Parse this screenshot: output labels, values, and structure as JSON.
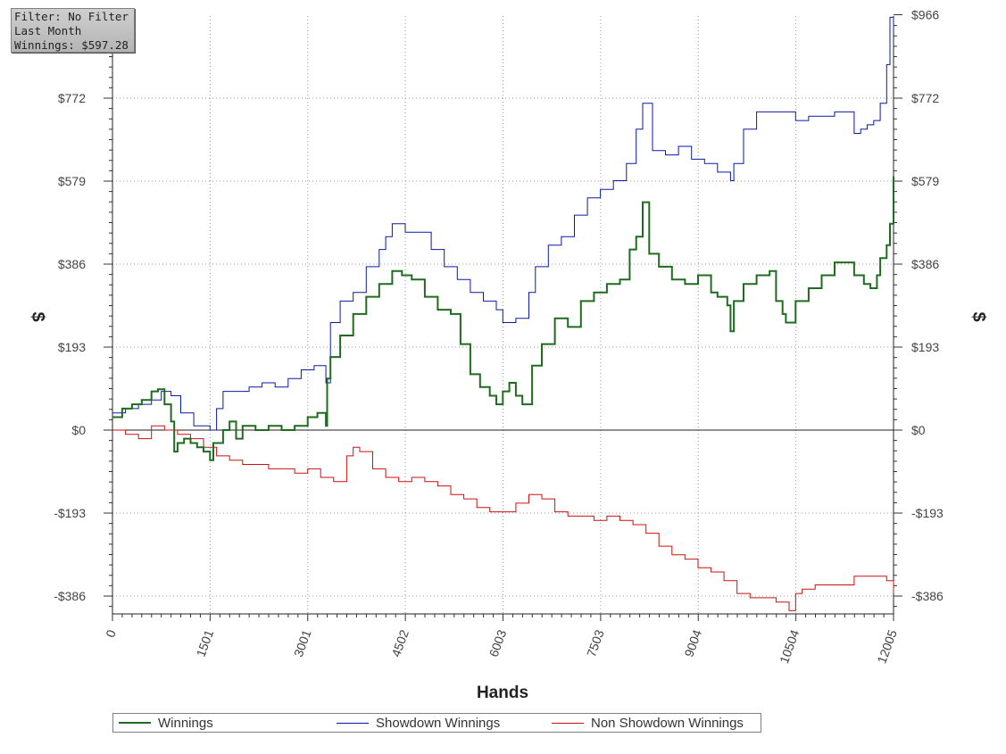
{
  "filter_box": {
    "filter_text": "Filter: No Filter",
    "period_text": "Last Month",
    "winnings_text": "Winnings: $597.28"
  },
  "chart_data": {
    "type": "line",
    "xlabel": "Hands",
    "ylabel": "$",
    "xlim": [
      0,
      12005
    ],
    "ylim": [
      -430,
      966
    ],
    "x_ticks": [
      "0",
      "1501",
      "3001",
      "4502",
      "6003",
      "7503",
      "9004",
      "10504",
      "12005"
    ],
    "y_ticks": [
      {
        "value": 966,
        "label": "$966",
        "show_left": false
      },
      {
        "value": 772,
        "label": "$772",
        "show_left": true
      },
      {
        "value": 579,
        "label": "$579",
        "show_left": true
      },
      {
        "value": 386,
        "label": "$386",
        "show_left": true
      },
      {
        "value": 193,
        "label": "$193",
        "show_left": true
      },
      {
        "value": 0,
        "label": "$0",
        "show_left": true
      },
      {
        "value": -193,
        "label": "-$193",
        "show_left": true
      },
      {
        "value": -386,
        "label": "-$386",
        "show_left": true
      }
    ],
    "grid": true,
    "legend_position": "bottom",
    "series": [
      {
        "name": "Winnings",
        "color": "#1f6b1f",
        "x": [
          0,
          150,
          300,
          450,
          600,
          700,
          800,
          900,
          950,
          1000,
          1100,
          1200,
          1300,
          1400,
          1500,
          1550,
          1700,
          1800,
          1900,
          2000,
          2200,
          2400,
          2600,
          2800,
          3000,
          3150,
          3280,
          3300,
          3350,
          3500,
          3700,
          3900,
          4100,
          4300,
          4450,
          4600,
          4800,
          5000,
          5200,
          5350,
          5500,
          5650,
          5800,
          5900,
          6000,
          6100,
          6200,
          6300,
          6450,
          6600,
          6800,
          7000,
          7200,
          7400,
          7600,
          7800,
          7950,
          8050,
          8150,
          8250,
          8400,
          8600,
          8800,
          9000,
          9200,
          9300,
          9450,
          9500,
          9550,
          9700,
          9900,
          10100,
          10200,
          10300,
          10350,
          10500,
          10700,
          10900,
          11100,
          11300,
          11400,
          11550,
          11650,
          11750,
          11800,
          11900,
          11950,
          12005
        ],
        "y": [
          30,
          50,
          60,
          70,
          90,
          95,
          60,
          20,
          -50,
          -30,
          -20,
          -30,
          -40,
          -50,
          -70,
          -30,
          0,
          20,
          -20,
          10,
          0,
          10,
          0,
          10,
          30,
          40,
          10,
          120,
          170,
          220,
          270,
          310,
          340,
          370,
          360,
          350,
          310,
          280,
          270,
          200,
          130,
          100,
          80,
          60,
          90,
          110,
          80,
          60,
          150,
          200,
          260,
          240,
          300,
          320,
          340,
          350,
          420,
          450,
          530,
          410,
          380,
          350,
          340,
          360,
          320,
          310,
          290,
          230,
          300,
          340,
          360,
          370,
          300,
          270,
          250,
          300,
          330,
          360,
          390,
          390,
          360,
          340,
          330,
          360,
          400,
          430,
          480,
          590
        ]
      },
      {
        "name": "Showdown Winnings",
        "color": "#0a1aa0",
        "x": [
          0,
          200,
          400,
          600,
          750,
          900,
          1050,
          1250,
          1500,
          1600,
          1700,
          1900,
          2100,
          2300,
          2500,
          2700,
          2900,
          3100,
          3280,
          3350,
          3500,
          3700,
          3900,
          4100,
          4200,
          4300,
          4500,
          4700,
          4900,
          5100,
          5300,
          5500,
          5700,
          5900,
          6000,
          6200,
          6400,
          6500,
          6700,
          6900,
          7100,
          7300,
          7500,
          7700,
          7900,
          8050,
          8150,
          8300,
          8500,
          8700,
          8900,
          9100,
          9300,
          9500,
          9550,
          9700,
          9900,
          10100,
          10300,
          10500,
          10700,
          10900,
          11100,
          11300,
          11400,
          11500,
          11600,
          11700,
          11800,
          11900,
          11950,
          12005
        ],
        "y": [
          40,
          50,
          60,
          70,
          90,
          80,
          40,
          10,
          0,
          50,
          90,
          90,
          100,
          110,
          100,
          120,
          140,
          150,
          110,
          250,
          300,
          320,
          380,
          420,
          450,
          480,
          460,
          460,
          420,
          380,
          350,
          320,
          300,
          280,
          250,
          260,
          320,
          380,
          430,
          450,
          500,
          540,
          560,
          580,
          620,
          700,
          760,
          650,
          640,
          660,
          630,
          620,
          600,
          580,
          620,
          700,
          740,
          740,
          740,
          720,
          730,
          730,
          740,
          740,
          690,
          700,
          710,
          720,
          760,
          850,
          960,
          920
        ]
      },
      {
        "name": "Non Showdown Winnings",
        "color": "#cc1010",
        "x": [
          0,
          200,
          400,
          600,
          800,
          1000,
          1200,
          1400,
          1600,
          1800,
          2000,
          2200,
          2400,
          2600,
          2800,
          3000,
          3200,
          3400,
          3600,
          3700,
          3800,
          4000,
          4200,
          4400,
          4600,
          4800,
          5000,
          5200,
          5400,
          5600,
          5800,
          6000,
          6200,
          6400,
          6600,
          6800,
          7000,
          7200,
          7400,
          7600,
          7800,
          8000,
          8200,
          8400,
          8600,
          8800,
          9000,
          9200,
          9400,
          9600,
          9800,
          10000,
          10200,
          10300,
          10400,
          10500,
          10600,
          10700,
          10800,
          11000,
          11200,
          11400,
          11600,
          11800,
          11900,
          12005
        ],
        "y": [
          0,
          -10,
          -20,
          10,
          0,
          -10,
          -20,
          -40,
          -60,
          -70,
          -80,
          -80,
          -90,
          -90,
          -100,
          -90,
          -110,
          -120,
          -60,
          -40,
          -50,
          -90,
          -110,
          -120,
          -110,
          -120,
          -130,
          -150,
          -160,
          -180,
          -190,
          -190,
          -170,
          -150,
          -160,
          -190,
          -200,
          -200,
          -210,
          -200,
          -210,
          -220,
          -240,
          -270,
          -290,
          -300,
          -320,
          -330,
          -350,
          -380,
          -390,
          -390,
          -400,
          -400,
          -420,
          -380,
          -370,
          -370,
          -360,
          -360,
          -360,
          -340,
          -340,
          -340,
          -350,
          -380
        ]
      }
    ]
  }
}
